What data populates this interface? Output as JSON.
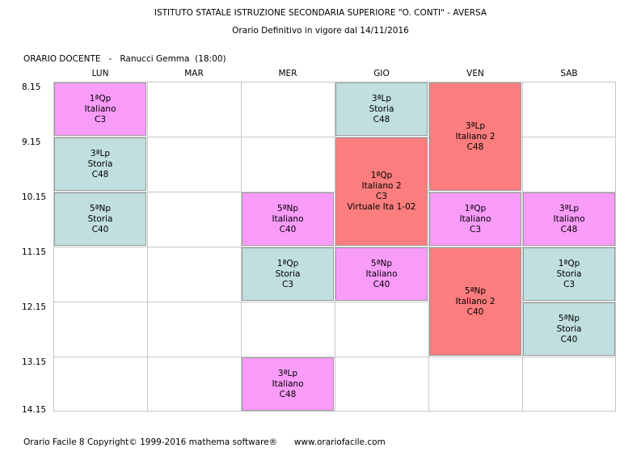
{
  "header": {
    "school": "ISTITUTO STATALE ISTRUZIONE SECONDARIA SUPERIORE \"O. CONTI\" - AVERSA",
    "subtitle": "Orario Definitivo in vigore dal 14/11/2016"
  },
  "teacher": {
    "label": "ORARIO DOCENTE",
    "separator": "-",
    "name": "Ranucci Gemma",
    "hours": "(18:00)"
  },
  "days": [
    "LUN",
    "MAR",
    "MER",
    "GIO",
    "VEN",
    "SAB"
  ],
  "times": [
    "8.15",
    "9.15",
    "10.15",
    "11.15",
    "12.15",
    "13.15",
    "14.15"
  ],
  "lessons": [
    {
      "day": 0,
      "start": 0,
      "span": 1,
      "class": "1ªQp",
      "subject": "Italiano",
      "room": "C3",
      "color": "#f99bf9"
    },
    {
      "day": 0,
      "start": 1,
      "span": 1,
      "class": "3ªLp",
      "subject": "Storia",
      "room": "C48",
      "color": "#c0dfde"
    },
    {
      "day": 0,
      "start": 2,
      "span": 1,
      "class": "5ªNp",
      "subject": "Storia",
      "room": "C40",
      "color": "#c0dfde"
    },
    {
      "day": 2,
      "start": 2,
      "span": 1,
      "class": "5ªNp",
      "subject": "Italiano",
      "room": "C40",
      "color": "#f99bf9"
    },
    {
      "day": 2,
      "start": 3,
      "span": 1,
      "class": "1ªQp",
      "subject": "Storia",
      "room": "C3",
      "color": "#c0dfde"
    },
    {
      "day": 2,
      "start": 5,
      "span": 1,
      "class": "3ªLp",
      "subject": "Italiano",
      "room": "C48",
      "color": "#f99bf9"
    },
    {
      "day": 3,
      "start": 0,
      "span": 1,
      "class": "3ªLp",
      "subject": "Storia",
      "room": "C48",
      "color": "#c0dfde"
    },
    {
      "day": 3,
      "start": 1,
      "span": 2,
      "class": "1ªQp",
      "subject": "Italiano 2",
      "room": "C3",
      "extra": "Virtuale Ita 1-02",
      "color": "#fb7d7d"
    },
    {
      "day": 3,
      "start": 3,
      "span": 1,
      "class": "5ªNp",
      "subject": "Italiano",
      "room": "C40",
      "color": "#f99bf9"
    },
    {
      "day": 4,
      "start": 0,
      "span": 2,
      "class": "3ªLp",
      "subject": "Italiano 2",
      "room": "C48",
      "color": "#fb7d7d"
    },
    {
      "day": 4,
      "start": 2,
      "span": 1,
      "class": "1ªQp",
      "subject": "Italiano",
      "room": "C3",
      "color": "#f99bf9"
    },
    {
      "day": 4,
      "start": 3,
      "span": 2,
      "class": "5ªNp",
      "subject": "Italiano 2",
      "room": "C40",
      "color": "#fb7d7d"
    },
    {
      "day": 5,
      "start": 2,
      "span": 1,
      "class": "3ªLp",
      "subject": "Italiano",
      "room": "C48",
      "color": "#f99bf9"
    },
    {
      "day": 5,
      "start": 3,
      "span": 1,
      "class": "1ªQp",
      "subject": "Storia",
      "room": "C3",
      "color": "#c0dfde"
    },
    {
      "day": 5,
      "start": 4,
      "span": 1,
      "class": "5ªNp",
      "subject": "Storia",
      "room": "C40",
      "color": "#c0dfde"
    }
  ],
  "footer": {
    "product": "Orario Facile 8",
    "copyright": "Copyright© 1999-2016 mathema software®",
    "website": "www.orariofacile.com"
  }
}
